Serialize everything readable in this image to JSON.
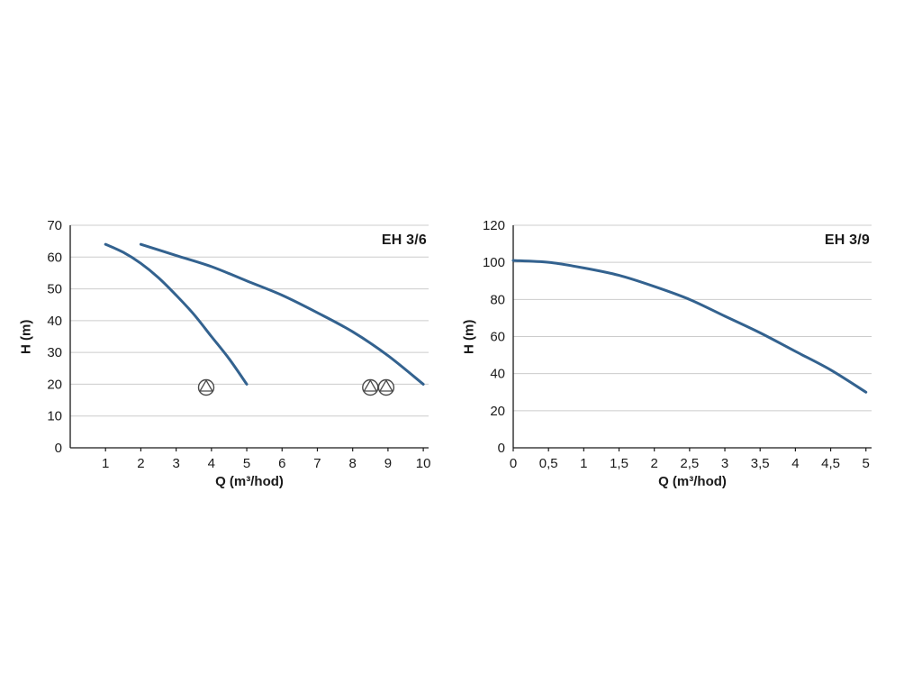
{
  "page": {
    "background": "#ffffff"
  },
  "chart_data": [
    {
      "type": "line",
      "title": "EH 3/6",
      "xlabel": "Q (m³/hod)",
      "ylabel": "H (m)",
      "xlim": [
        0,
        10.15
      ],
      "ylim": [
        0,
        70
      ],
      "yticks": [
        0,
        10,
        20,
        30,
        40,
        50,
        60,
        70
      ],
      "xticks": {
        "values": [
          1,
          2,
          3,
          4,
          5,
          6,
          7,
          8,
          9,
          10
        ],
        "labels": [
          "1",
          "2",
          "3",
          "4",
          "5",
          "6",
          "7",
          "8",
          "9",
          "10"
        ]
      },
      "grid": "horizontal",
      "legend": "none",
      "grid_color": "#cccccc",
      "axis_color": "#1a1a1a",
      "line_color": "#33628f",
      "symbol_color": "#4a4a4a",
      "series": [
        {
          "name": "steep-curve",
          "x": [
            1,
            1.5,
            2,
            2.5,
            3,
            3.5,
            4,
            4.5,
            5
          ],
          "y": [
            64,
            61.5,
            58,
            53.5,
            48,
            42,
            35,
            28,
            20
          ]
        },
        {
          "name": "flat-curve",
          "x": [
            2,
            3,
            4,
            5,
            6,
            7,
            8,
            9,
            10
          ],
          "y": [
            64,
            60.5,
            57,
            52.5,
            48,
            42.5,
            36.5,
            29,
            20
          ]
        }
      ],
      "pump_symbols": [
        {
          "x": 3.85,
          "y": 19
        },
        {
          "x": 8.5,
          "y": 19
        },
        {
          "x": 8.95,
          "y": 19
        }
      ]
    },
    {
      "type": "line",
      "title": "EH 3/9",
      "xlabel": "Q (m³/hod)",
      "ylabel": "H (m)",
      "xlim": [
        0,
        5.08
      ],
      "ylim": [
        0,
        120
      ],
      "yticks": [
        0,
        20,
        40,
        60,
        80,
        100,
        120
      ],
      "xticks": {
        "values": [
          0,
          0.5,
          1,
          1.5,
          2,
          2.5,
          3,
          3.5,
          4,
          4.5,
          5
        ],
        "labels": [
          "0",
          "0,5",
          "1",
          "1,5",
          "2",
          "2,5",
          "3",
          "3,5",
          "4",
          "4,5",
          "5"
        ]
      },
      "grid": "horizontal",
      "legend": "none",
      "grid_color": "#cccccc",
      "axis_color": "#1a1a1a",
      "line_color": "#33628f",
      "symbol_color": "#4a4a4a",
      "series": [
        {
          "name": "curve",
          "x": [
            0,
            0.5,
            1,
            1.5,
            2,
            2.5,
            3,
            3.5,
            4,
            4.5,
            5
          ],
          "y": [
            101,
            100,
            97,
            93,
            87,
            80,
            71,
            62,
            52,
            42,
            30
          ]
        }
      ],
      "pump_symbols": []
    }
  ]
}
